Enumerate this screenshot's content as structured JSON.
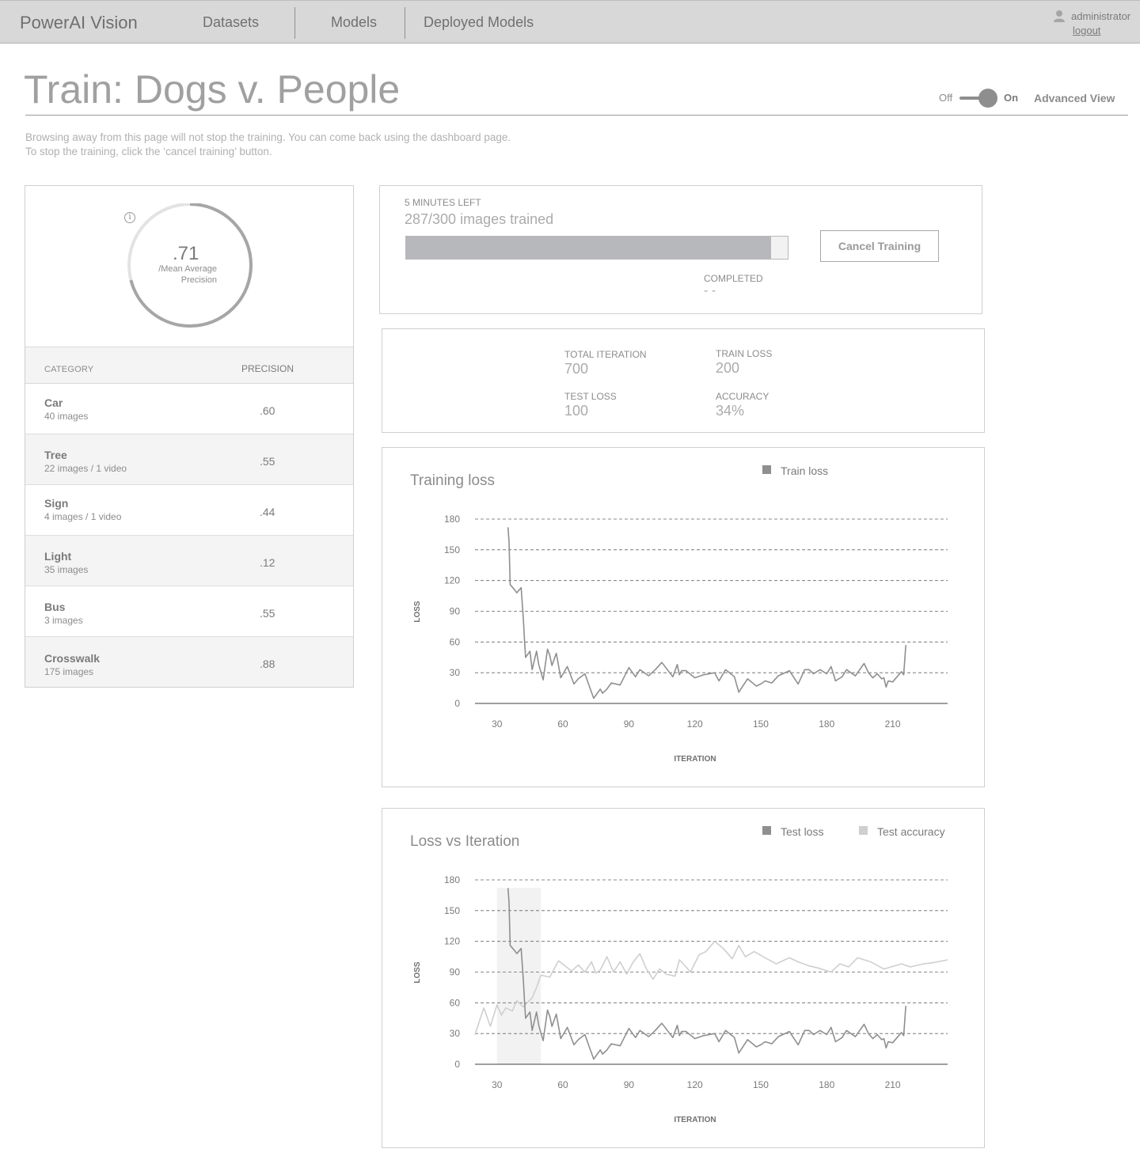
{
  "header": {
    "brand": "PowerAI Vision",
    "nav": [
      "Datasets",
      "Models",
      "Deployed Models"
    ],
    "user": "administrator",
    "logout": "logout"
  },
  "page": {
    "title": "Train: Dogs v. People",
    "toggle": {
      "off_label": "Off",
      "on_label": "On",
      "state": "on"
    },
    "advanced_view": "Advanced View",
    "notice": [
      "Browsing away from this page will not stop the training. You can come back using the dashboard page.",
      "To stop the training, click the ‘cancel training’ button."
    ]
  },
  "map": {
    "value": ".71",
    "value_fraction": 0.71,
    "label_line1": "/Mean Average",
    "label_line2": "Precision",
    "icon": "info-icon"
  },
  "table": {
    "headers": {
      "category": "CATEGORY",
      "precision": "PRECISION"
    },
    "rows": [
      {
        "name": "Car",
        "sub": "40 images",
        "precision": ".60"
      },
      {
        "name": "Tree",
        "sub": "22 images / 1 video",
        "precision": ".55"
      },
      {
        "name": "Sign",
        "sub": "4 images / 1 video",
        "precision": ".44"
      },
      {
        "name": "Light",
        "sub": "35 images",
        "precision": ".12"
      },
      {
        "name": "Bus",
        "sub": "3 images",
        "precision": ".55"
      },
      {
        "name": "Crosswalk",
        "sub": "175 images",
        "precision": ".88"
      }
    ]
  },
  "progress": {
    "time_left": "5 MINUTES LEFT",
    "images_trained": "287/300 images trained",
    "fraction": 0.957,
    "cancel_label": "Cancel Training",
    "completed_label": "COMPLETED",
    "completed_value": "- -"
  },
  "stats": {
    "total_iteration_label": "TOTAL ITERATION",
    "total_iteration": "700",
    "train_loss_label": "TRAIN LOSS",
    "train_loss": "200",
    "test_loss_label": "TEST LOSS",
    "test_loss": "100",
    "accuracy_label": "ACCURACY",
    "accuracy": "34%"
  },
  "colors": {
    "series_dark": "#8f8f8f",
    "series_light": "#cfcfcf",
    "grid": "#666666",
    "highlight": "#f2f2f2"
  },
  "chart_data": [
    {
      "type": "line",
      "title": "Training loss",
      "xlabel": "ITERATION",
      "ylabel": "LOSS",
      "xticks": [
        30,
        60,
        90,
        120,
        150,
        180,
        210
      ],
      "yticks": [
        0,
        30,
        60,
        90,
        120,
        150,
        180
      ],
      "xlim": [
        20,
        235
      ],
      "ylim": [
        0,
        180
      ],
      "grid": "dashed horizontal",
      "legend_position": "top-right",
      "series": [
        {
          "name": "Train loss",
          "x": [
            35,
            35.5,
            36,
            38,
            39,
            41,
            42,
            42.5,
            43,
            45,
            46,
            48,
            49,
            51,
            53,
            54,
            55,
            57,
            59,
            62,
            65,
            67,
            70,
            74,
            77,
            78,
            80,
            82,
            86,
            90,
            93,
            95,
            97,
            99,
            102,
            105,
            110,
            112,
            113,
            114,
            116,
            120,
            124,
            129,
            131,
            134,
            138,
            140,
            144,
            148,
            150,
            152,
            155,
            158,
            163,
            167,
            170,
            172,
            174,
            177,
            180,
            182,
            184,
            187,
            189,
            193,
            197,
            199,
            201,
            203,
            205,
            206,
            207,
            208,
            210,
            212,
            214,
            215,
            216
          ],
          "values": [
            172,
            158,
            116,
            111,
            108,
            113,
            82,
            62,
            45,
            51,
            33,
            51,
            38,
            23,
            53,
            47,
            37,
            49,
            25,
            36,
            19,
            24,
            29,
            5,
            14,
            10,
            14,
            20,
            18,
            35,
            26,
            33,
            30,
            27,
            33,
            40,
            26,
            38,
            28,
            32,
            32,
            25,
            28,
            30,
            22,
            33,
            26,
            11,
            24,
            17,
            19,
            22,
            20,
            27,
            32,
            19,
            33,
            33,
            29,
            33,
            29,
            36,
            22,
            26,
            33,
            27,
            39,
            30,
            25,
            29,
            24,
            25,
            16,
            22,
            21,
            26,
            31,
            28,
            57
          ]
        }
      ]
    },
    {
      "type": "line",
      "title": "Loss vs Iteration",
      "xlabel": "ITERATION",
      "ylabel": "LOSS",
      "xticks": [
        30,
        60,
        90,
        120,
        150,
        180,
        210
      ],
      "yticks": [
        0,
        30,
        60,
        90,
        120,
        150,
        180
      ],
      "xlim": [
        20,
        235
      ],
      "ylim": [
        0,
        180
      ],
      "grid": "dashed horizontal",
      "legend_position": "top-right",
      "highlight_x": [
        30,
        50
      ],
      "series": [
        {
          "name": "Test loss",
          "x": [
            35,
            35.5,
            36,
            38,
            39,
            41,
            42,
            42.5,
            43,
            45,
            46,
            48,
            49,
            51,
            53,
            54,
            55,
            57,
            59,
            62,
            65,
            67,
            70,
            74,
            77,
            78,
            80,
            82,
            86,
            90,
            93,
            95,
            97,
            99,
            102,
            105,
            110,
            112,
            113,
            114,
            116,
            120,
            124,
            129,
            131,
            134,
            138,
            140,
            144,
            148,
            150,
            152,
            155,
            158,
            163,
            167,
            170,
            172,
            174,
            177,
            180,
            182,
            184,
            187,
            189,
            193,
            197,
            199,
            201,
            203,
            205,
            206,
            207,
            208,
            210,
            212,
            214,
            215,
            216
          ],
          "values": [
            172,
            158,
            116,
            111,
            108,
            113,
            82,
            62,
            45,
            51,
            33,
            51,
            38,
            23,
            53,
            47,
            37,
            49,
            25,
            36,
            19,
            24,
            29,
            5,
            14,
            10,
            14,
            20,
            18,
            35,
            26,
            33,
            30,
            27,
            33,
            40,
            26,
            38,
            28,
            32,
            32,
            25,
            28,
            30,
            22,
            33,
            26,
            11,
            24,
            17,
            19,
            22,
            20,
            27,
            32,
            19,
            33,
            33,
            29,
            33,
            29,
            36,
            22,
            26,
            33,
            27,
            39,
            30,
            25,
            29,
            24,
            25,
            16,
            22,
            21,
            26,
            31,
            28,
            57
          ]
        },
        {
          "name": "Test accuracy",
          "x": [
            20,
            24,
            27,
            30,
            32,
            34,
            37,
            39,
            42,
            46,
            48,
            50,
            54,
            58,
            61,
            64,
            67,
            70,
            73,
            75,
            77,
            80,
            83,
            86,
            89,
            92,
            95,
            98,
            101,
            104,
            107,
            111,
            113,
            116,
            118,
            122,
            125,
            129,
            133,
            137,
            140,
            143,
            147,
            152,
            157,
            163,
            167,
            172,
            176,
            182,
            186,
            190,
            194,
            200,
            206,
            214,
            218,
            224,
            228,
            235
          ],
          "values": [
            29,
            55,
            37,
            58,
            48,
            55,
            52,
            62,
            56,
            65,
            75,
            87,
            85,
            101,
            96,
            91,
            97,
            90,
            100,
            89,
            92,
            105,
            90,
            100,
            88,
            100,
            108,
            93,
            83,
            93,
            88,
            86,
            102,
            95,
            90,
            107,
            110,
            120,
            113,
            103,
            116,
            105,
            110,
            104,
            98,
            104,
            100,
            96,
            94,
            90,
            98,
            95,
            104,
            100,
            93,
            98,
            95,
            98,
            99,
            102
          ]
        }
      ]
    }
  ]
}
